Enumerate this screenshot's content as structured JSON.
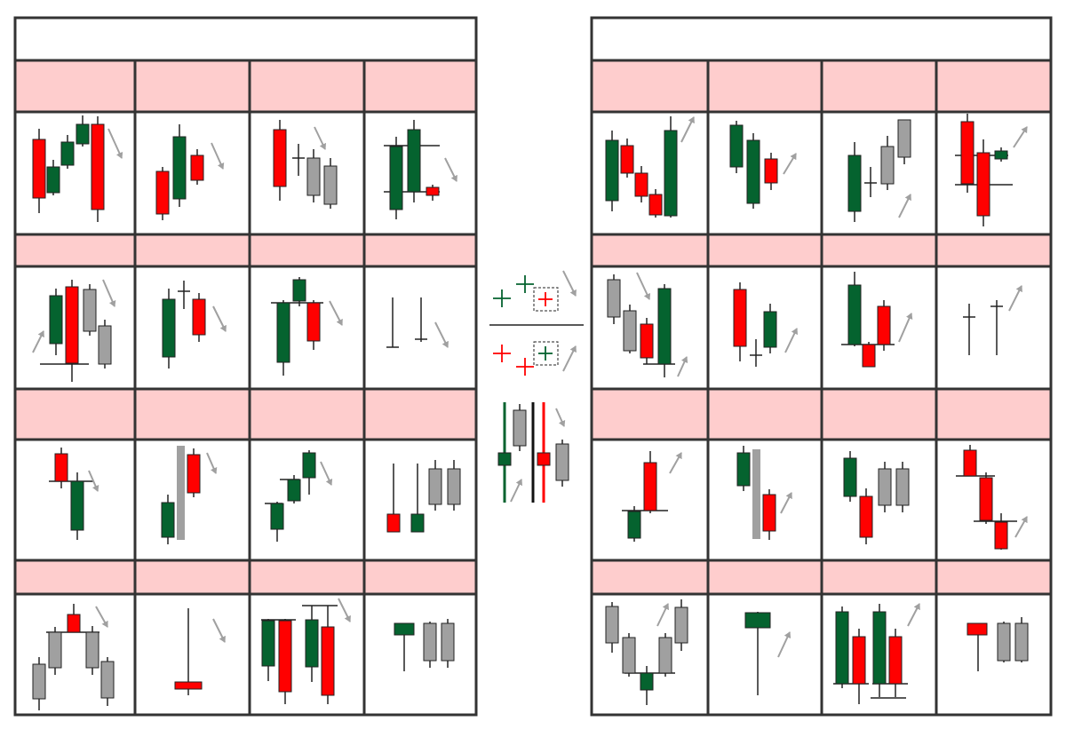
{
  "colors": {
    "bullish": "#05632f",
    "bearish": "#ff0000",
    "neutral": "#a0a0a0",
    "header_fill": "#fecdcd",
    "border": "#333333",
    "arrow": "#a0a0a0"
  },
  "tables": [
    {
      "name": "bearish-patterns-table",
      "title": "",
      "arrow_direction": "down",
      "row_labels": [
        "",
        "",
        "",
        ""
      ],
      "cell_labels": [
        [
          "",
          "",
          "",
          ""
        ],
        [
          "",
          "",
          "",
          ""
        ],
        [
          "",
          "",
          "",
          ""
        ],
        [
          "",
          "",
          "",
          ""
        ]
      ]
    },
    {
      "name": "bullish-patterns-table",
      "title": "",
      "arrow_direction": "up",
      "row_labels": [
        "",
        "",
        "",
        ""
      ],
      "cell_labels": [
        [
          "",
          "",
          "",
          ""
        ],
        [
          "",
          "",
          "",
          ""
        ],
        [
          "",
          "",
          "",
          ""
        ],
        [
          "",
          "",
          "",
          ""
        ]
      ]
    }
  ],
  "legend": {
    "items": [
      {
        "name": "bullish-cross-legend",
        "label": ""
      },
      {
        "name": "bearish-cross-legend",
        "label": ""
      },
      {
        "name": "candle-color-legend",
        "label": ""
      }
    ]
  }
}
